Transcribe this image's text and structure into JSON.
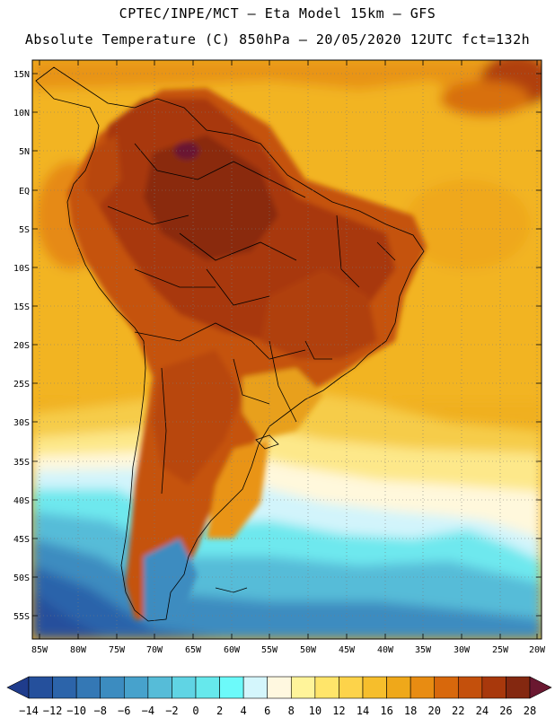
{
  "header": {
    "line1": "CPTEC/INPE/MCT –  Eta Model 15km – GFS",
    "line2": "Absolute Temperature (C) 850hPa – 20/05/2020 12UTC fct=132h"
  },
  "axes": {
    "lat_labels": [
      "15N",
      "10N",
      "5N",
      "EQ",
      "5S",
      "10S",
      "15S",
      "20S",
      "25S",
      "30S",
      "35S",
      "40S",
      "45S",
      "50S",
      "55S"
    ],
    "lon_labels": [
      "85W",
      "80W",
      "75W",
      "70W",
      "65W",
      "60W",
      "55W",
      "50W",
      "45W",
      "40W",
      "35W",
      "30W",
      "25W",
      "20W"
    ],
    "lat_range": [
      17,
      -58
    ],
    "lon_range": [
      -86,
      -20
    ]
  },
  "colorbar": {
    "tick_labels": [
      "-14",
      "-12",
      "-10",
      "-8",
      "-6",
      "-4",
      "-2",
      "0",
      "2",
      "4",
      "6",
      "8",
      "10",
      "12",
      "14",
      "16",
      "18",
      "20",
      "22",
      "24",
      "26",
      "28"
    ],
    "colors": [
      "#1f3c8c",
      "#25509c",
      "#2c64aa",
      "#3478b5",
      "#3c8cc0",
      "#47a2cc",
      "#56bcd8",
      "#60d4e4",
      "#66e8ec",
      "#6cfafa",
      "#d4f6fc",
      "#fff8e0",
      "#fff49a",
      "#ffe56a",
      "#fdd34a",
      "#f6be2c",
      "#efa81a",
      "#e88c12",
      "#d8680c",
      "#c4500c",
      "#a8380c",
      "#842810",
      "#6a1830"
    ]
  },
  "map": {
    "ocean_base_color": "#f0b020",
    "land_base_color": "#c5520c"
  }
}
